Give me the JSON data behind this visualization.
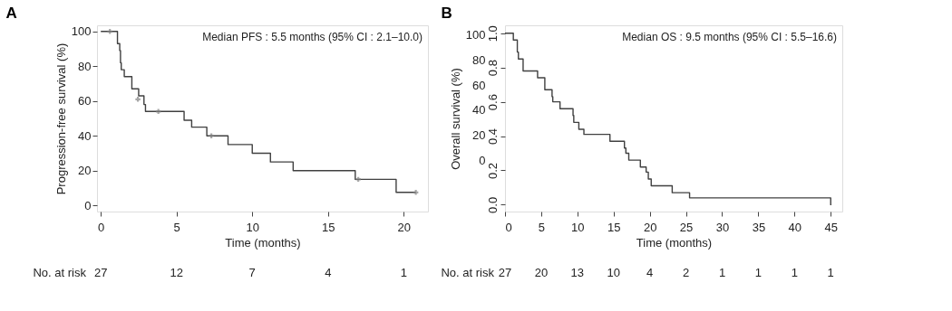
{
  "chart_data": [
    {
      "type": "step",
      "title": "A",
      "xlabel": "Time (months)",
      "ylabel": "Progression-free survival (%)",
      "xlim": [
        -0.25,
        21.6
      ],
      "xticks": [
        0,
        5,
        10,
        15,
        20
      ],
      "ylim": [
        -3.5,
        103.5
      ],
      "yticks": [
        0,
        20,
        40,
        60,
        80,
        100
      ],
      "grid": false,
      "line_style": "solid",
      "series": [
        {
          "color": "#404040",
          "x": [
            0,
            1.1,
            1.25,
            1.3,
            1.35,
            1.55,
            2.05,
            2.5,
            2.85,
            2.95,
            5.5,
            6.0,
            7.0,
            8.4,
            10.0,
            11.2,
            12.7,
            16.8,
            19.5,
            20.8
          ],
          "values": [
            100,
            93,
            89,
            82,
            78,
            74,
            67,
            63,
            58,
            54,
            49,
            45,
            40,
            35,
            30,
            25,
            20,
            15,
            7.5,
            7.5
          ]
        },
        {
          "type": "scatter",
          "marker": "cross",
          "color": "#808080",
          "x": [
            0.6,
            2.45,
            3.8,
            7.3,
            17.0,
            20.8
          ],
          "values": [
            100,
            61,
            54,
            40,
            15,
            7.5
          ]
        }
      ],
      "annotations": [
        "Median PFS : 5.5 months (95% CI : 2.1–10.0)",
        "No. at risk",
        "27",
        "12",
        "7",
        "4",
        "1"
      ]
    },
    {
      "type": "step",
      "title": "B",
      "xlabel": "Time (months)",
      "ylabel": "Overall survival (%)",
      "xlim": [
        0,
        46.6
      ],
      "xticks": [
        0,
        5,
        10,
        15,
        20,
        25,
        30,
        35,
        40,
        45
      ],
      "ylim": [
        -41,
        107.7
      ],
      "y2lim": [
        -0.04,
        1.046
      ],
      "y2ticks": [
        {
          "value": 0,
          "label": "0.0"
        },
        {
          "value": 0.2,
          "label": "0.2"
        },
        {
          "value": 0.4,
          "label": "0.4"
        },
        {
          "value": 0.6,
          "label": "0.6"
        },
        {
          "value": 0.8,
          "label": "0.8"
        },
        {
          "value": 1,
          "label": "1.0"
        }
      ],
      "yticks": [
        0,
        20,
        40,
        60,
        80,
        100
      ],
      "grid": false,
      "line_style": "solid",
      "series": [
        {
          "axis": "y2",
          "color": "#404040",
          "x": [
            0,
            1.15,
            1.7,
            1.85,
            2.5,
            4.5,
            5.5,
            6.5,
            6.6,
            7.6,
            9.4,
            9.5,
            10.2,
            10.9,
            14.5,
            16.5,
            16.7,
            17.1,
            18.7,
            19.5,
            19.8,
            20.2,
            23.1,
            25.5,
            45.0,
            45.1
          ],
          "values": [
            1.0,
            0.96,
            0.89,
            0.85,
            0.78,
            0.74,
            0.67,
            0.63,
            0.6,
            0.56,
            0.52,
            0.48,
            0.44,
            0.41,
            0.37,
            0.33,
            0.3,
            0.26,
            0.22,
            0.19,
            0.15,
            0.11,
            0.07,
            0.04,
            0.0,
            0.0
          ]
        }
      ],
      "annotations": [
        "Median OS : 9.5 months (95% CI : 5.5–16.6)",
        "No. at risk",
        "27",
        "20",
        "13",
        "10",
        "4",
        "2",
        "1",
        "1",
        "1",
        "1"
      ]
    }
  ]
}
